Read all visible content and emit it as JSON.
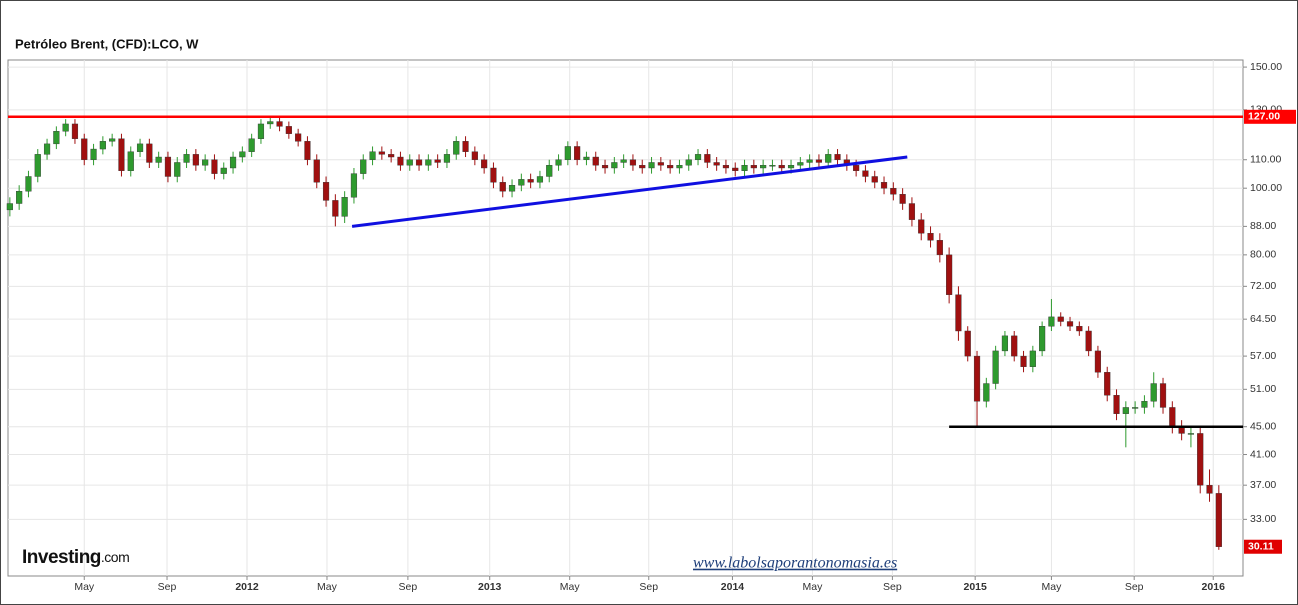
{
  "chart_data": {
    "type": "candlestick",
    "title": "Petróleo Brent, (CFD):LCO, W",
    "log_scale": true,
    "grid": true,
    "up_color": "#2e9a2e",
    "down_color": "#a01010",
    "ylim": [
      27.3,
      153.6
    ],
    "yticks": [
      {
        "value": 150,
        "label": "150.00"
      },
      {
        "value": 130,
        "label": "130.00"
      },
      {
        "value": 110,
        "label": "110.00"
      },
      {
        "value": 100,
        "label": "100.00"
      },
      {
        "value": 88,
        "label": "88.00"
      },
      {
        "value": 80,
        "label": "80.00"
      },
      {
        "value": 72,
        "label": "72.00"
      },
      {
        "value": 64.5,
        "label": "64.50"
      },
      {
        "value": 57,
        "label": "57.00"
      },
      {
        "value": 51,
        "label": "51.00"
      },
      {
        "value": 45,
        "label": "45.00"
      },
      {
        "value": 41,
        "label": "41.00"
      },
      {
        "value": 37,
        "label": "37.00"
      },
      {
        "value": 33,
        "label": "33.00"
      }
    ],
    "xlim": [
      -0.2,
      132.6
    ],
    "xticks": [
      {
        "value": 8,
        "label": "May"
      },
      {
        "value": 16.9,
        "label": "Sep"
      },
      {
        "value": 25.5,
        "label": "2012"
      },
      {
        "value": 34.1,
        "label": "May"
      },
      {
        "value": 42.8,
        "label": "Sep"
      },
      {
        "value": 51.6,
        "label": "2013"
      },
      {
        "value": 60.2,
        "label": "May"
      },
      {
        "value": 68.7,
        "label": "Sep"
      },
      {
        "value": 77.7,
        "label": "2014"
      },
      {
        "value": 86.3,
        "label": "May"
      },
      {
        "value": 94.9,
        "label": "Sep"
      },
      {
        "value": 103.8,
        "label": "2015"
      },
      {
        "value": 112,
        "label": "May"
      },
      {
        "value": 120.9,
        "label": "Sep"
      },
      {
        "value": 129.4,
        "label": "2016"
      }
    ],
    "open": [
      93,
      95,
      99,
      104,
      112,
      116,
      121,
      124,
      118,
      110,
      114,
      117,
      118,
      106,
      113,
      116,
      109,
      111,
      104,
      109,
      112,
      108,
      110,
      105,
      107,
      111,
      113,
      118,
      124,
      125,
      123,
      120,
      117,
      110,
      102,
      96,
      91,
      97,
      105,
      110,
      113,
      112,
      111,
      108,
      110,
      108,
      110,
      109,
      112,
      117,
      113,
      110,
      107,
      102,
      99,
      101,
      103,
      102,
      104,
      108,
      110,
      115,
      110,
      111,
      108,
      107,
      109,
      110,
      108,
      107,
      109,
      108,
      107,
      108,
      110,
      112,
      109,
      108,
      107,
      106,
      108,
      107,
      108,
      108,
      107,
      108,
      109,
      110,
      109,
      112,
      110,
      108,
      106,
      104,
      102,
      100,
      98,
      95,
      90,
      86,
      84,
      80,
      70,
      62,
      57,
      49,
      52,
      58,
      61,
      57,
      55,
      58,
      63,
      65,
      64,
      63,
      62,
      58,
      54,
      50,
      47,
      48,
      48,
      49,
      52,
      48,
      45,
      44,
      44,
      37,
      36
    ],
    "high": [
      97,
      101,
      106,
      114,
      118,
      123,
      126,
      126,
      120,
      116,
      119,
      120,
      120,
      115,
      118,
      118,
      113,
      113,
      111,
      114,
      114,
      112,
      112,
      109,
      113,
      115,
      120,
      126,
      127,
      127,
      125,
      122,
      119,
      112,
      104,
      98,
      99,
      107,
      112,
      115,
      115,
      114,
      113,
      112,
      112,
      112,
      112,
      114,
      119,
      119,
      115,
      112,
      109,
      104,
      103,
      105,
      105,
      106,
      110,
      112,
      117,
      117,
      113,
      113,
      110,
      111,
      112,
      112,
      110,
      111,
      111,
      110,
      110,
      112,
      114,
      114,
      111,
      110,
      109,
      110,
      110,
      110,
      110,
      110,
      110,
      111,
      112,
      112,
      114,
      114,
      112,
      110,
      108,
      106,
      104,
      102,
      100,
      97,
      92,
      88,
      86,
      82,
      72,
      63,
      58,
      53,
      59,
      62,
      62,
      58,
      59,
      64,
      69,
      66,
      65,
      64,
      63,
      59,
      55,
      51,
      49,
      49,
      50,
      54,
      53,
      49,
      46,
      45,
      45,
      39,
      37
    ],
    "low": [
      91,
      93,
      97,
      102,
      110,
      114,
      119,
      116,
      108,
      108,
      112,
      115,
      104,
      104,
      111,
      107,
      107,
      102,
      102,
      107,
      106,
      106,
      103,
      103,
      105,
      109,
      111,
      116,
      122,
      121,
      118,
      115,
      108,
      100,
      94,
      88,
      89,
      95,
      103,
      108,
      110,
      109,
      106,
      106,
      106,
      106,
      107,
      107,
      110,
      111,
      108,
      105,
      100,
      97,
      97,
      99,
      100,
      100,
      102,
      106,
      108,
      108,
      108,
      106,
      105,
      105,
      107,
      106,
      105,
      105,
      106,
      105,
      105,
      106,
      108,
      107,
      106,
      105,
      104,
      104,
      105,
      105,
      106,
      105,
      105,
      106,
      107,
      107,
      107,
      108,
      106,
      104,
      102,
      100,
      98,
      96,
      93,
      88,
      84,
      82,
      78,
      68,
      60,
      56,
      45,
      48,
      51,
      57,
      56,
      54,
      54,
      57,
      62,
      63,
      62,
      61,
      57,
      53,
      49,
      46,
      42,
      47,
      47,
      48,
      47,
      44,
      43,
      42,
      36,
      35,
      29.8
    ],
    "close": [
      95,
      99,
      104,
      112,
      116,
      121,
      124,
      118,
      110,
      114,
      117,
      118,
      106,
      113,
      116,
      109,
      111,
      104,
      109,
      112,
      108,
      110,
      105,
      107,
      111,
      113,
      118,
      124,
      125,
      123,
      120,
      117,
      110,
      102,
      96,
      91,
      97,
      105,
      110,
      113,
      112,
      111,
      108,
      110,
      108,
      110,
      109,
      112,
      117,
      113,
      110,
      107,
      102,
      99,
      101,
      103,
      102,
      104,
      108,
      110,
      115,
      110,
      111,
      108,
      107,
      109,
      110,
      108,
      107,
      109,
      108,
      107,
      108,
      110,
      112,
      109,
      108,
      107,
      106,
      108,
      107,
      108,
      108,
      107,
      108,
      109,
      110,
      109,
      112,
      110,
      108,
      106,
      104,
      102,
      100,
      98,
      95,
      90,
      86,
      84,
      80,
      70,
      62,
      57,
      49,
      52,
      58,
      61,
      57,
      55,
      58,
      63,
      65,
      64,
      63,
      62,
      58,
      54,
      50,
      47,
      48,
      48,
      49,
      52,
      48,
      45,
      44,
      44,
      37,
      36,
      30.11
    ],
    "hlines": [
      {
        "value": 127,
        "label": "127.00",
        "color": "#ff0000"
      },
      {
        "value": 45,
        "from": 101,
        "color": "#000000"
      }
    ],
    "trendline": {
      "color": "#1010e0",
      "x": [
        36.8,
        96.5
      ],
      "y": [
        88,
        111
      ]
    },
    "logo": "Investing",
    "logo_suffix": ".com",
    "watermark": "www.labolsaporantonomasia.es"
  }
}
